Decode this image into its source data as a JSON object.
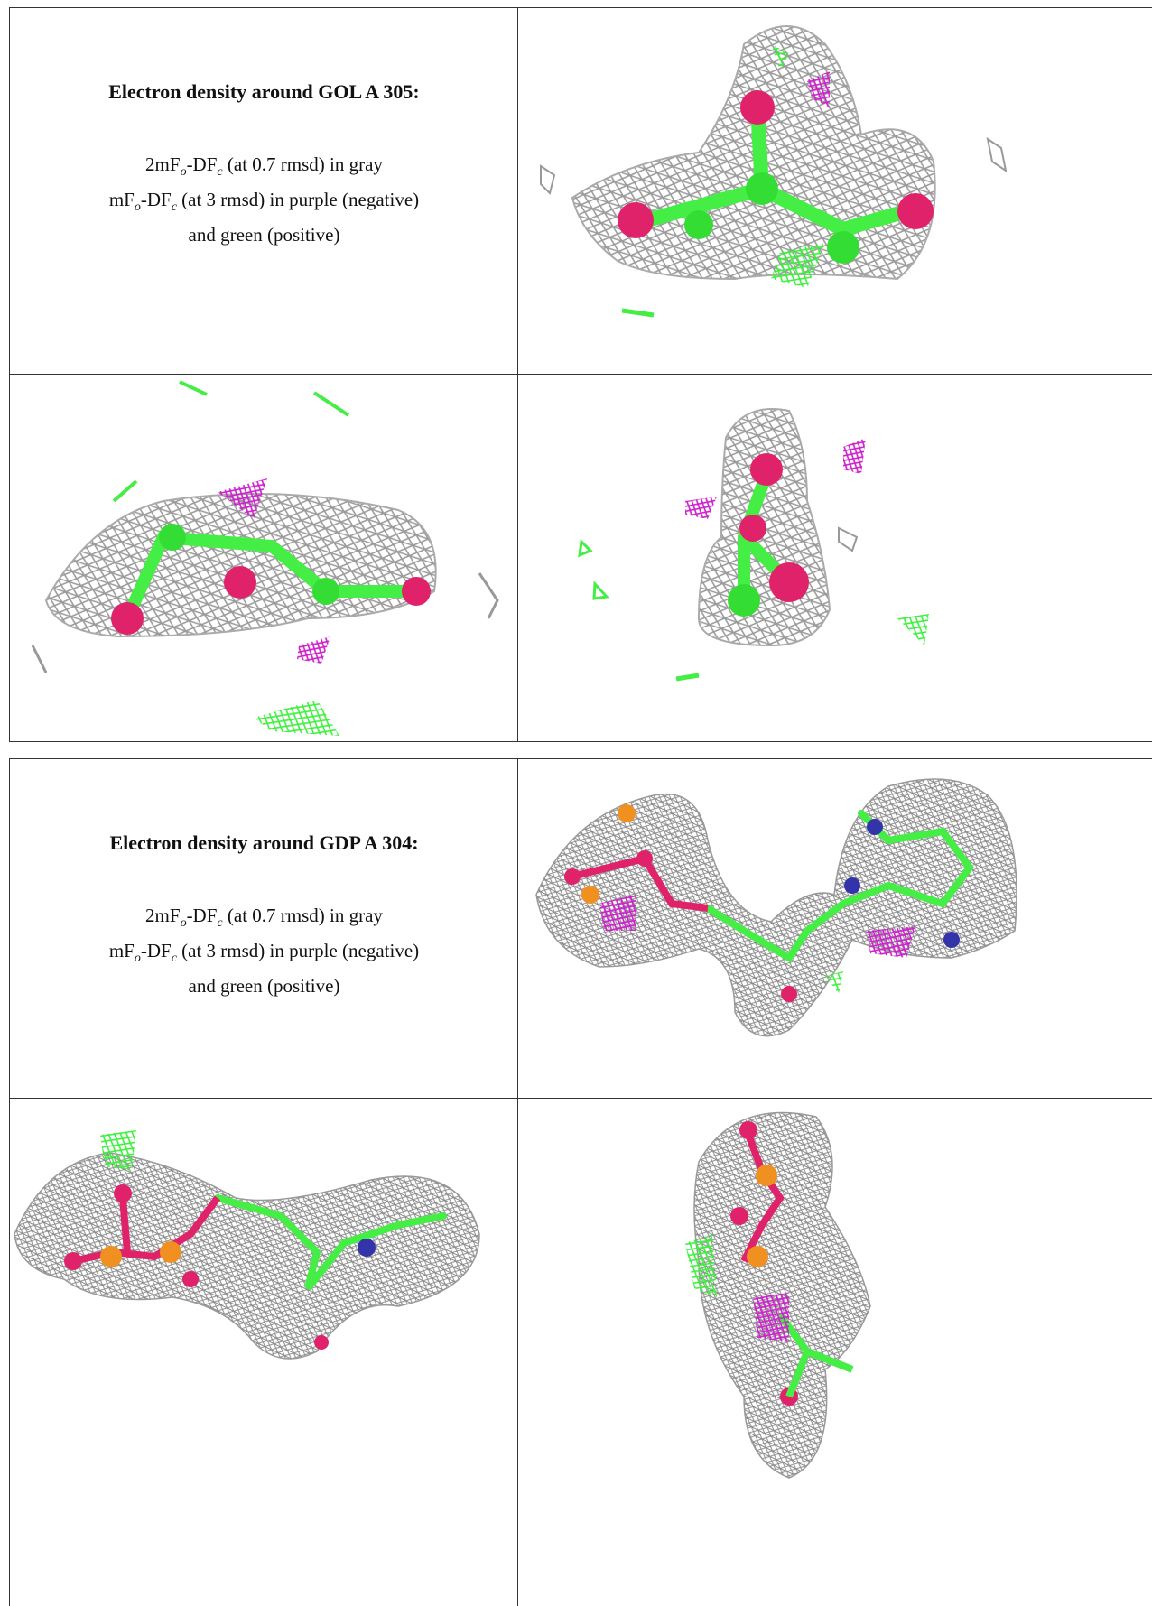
{
  "tables": [
    {
      "title": "Electron density around GOL A 305:",
      "caption": [
        [
          "2mF",
          "o",
          "-DF",
          "c",
          " (at 0.7 rmsd) in gray"
        ],
        [
          "mF",
          "o",
          "-DF",
          "c",
          " (at 3 rmsd) in purple (negative)"
        ],
        [
          "and green (positive)"
        ]
      ]
    },
    {
      "title": "Electron density around GDP A 304:",
      "caption": [
        [
          "2mF",
          "o",
          "-DF",
          "c",
          " (at 0.7 rmsd) in gray"
        ],
        [
          "mF",
          "o",
          "-DF",
          "c",
          " (at 3 rmsd) in purple (negative)"
        ],
        [
          "and green (positive)"
        ]
      ]
    }
  ]
}
